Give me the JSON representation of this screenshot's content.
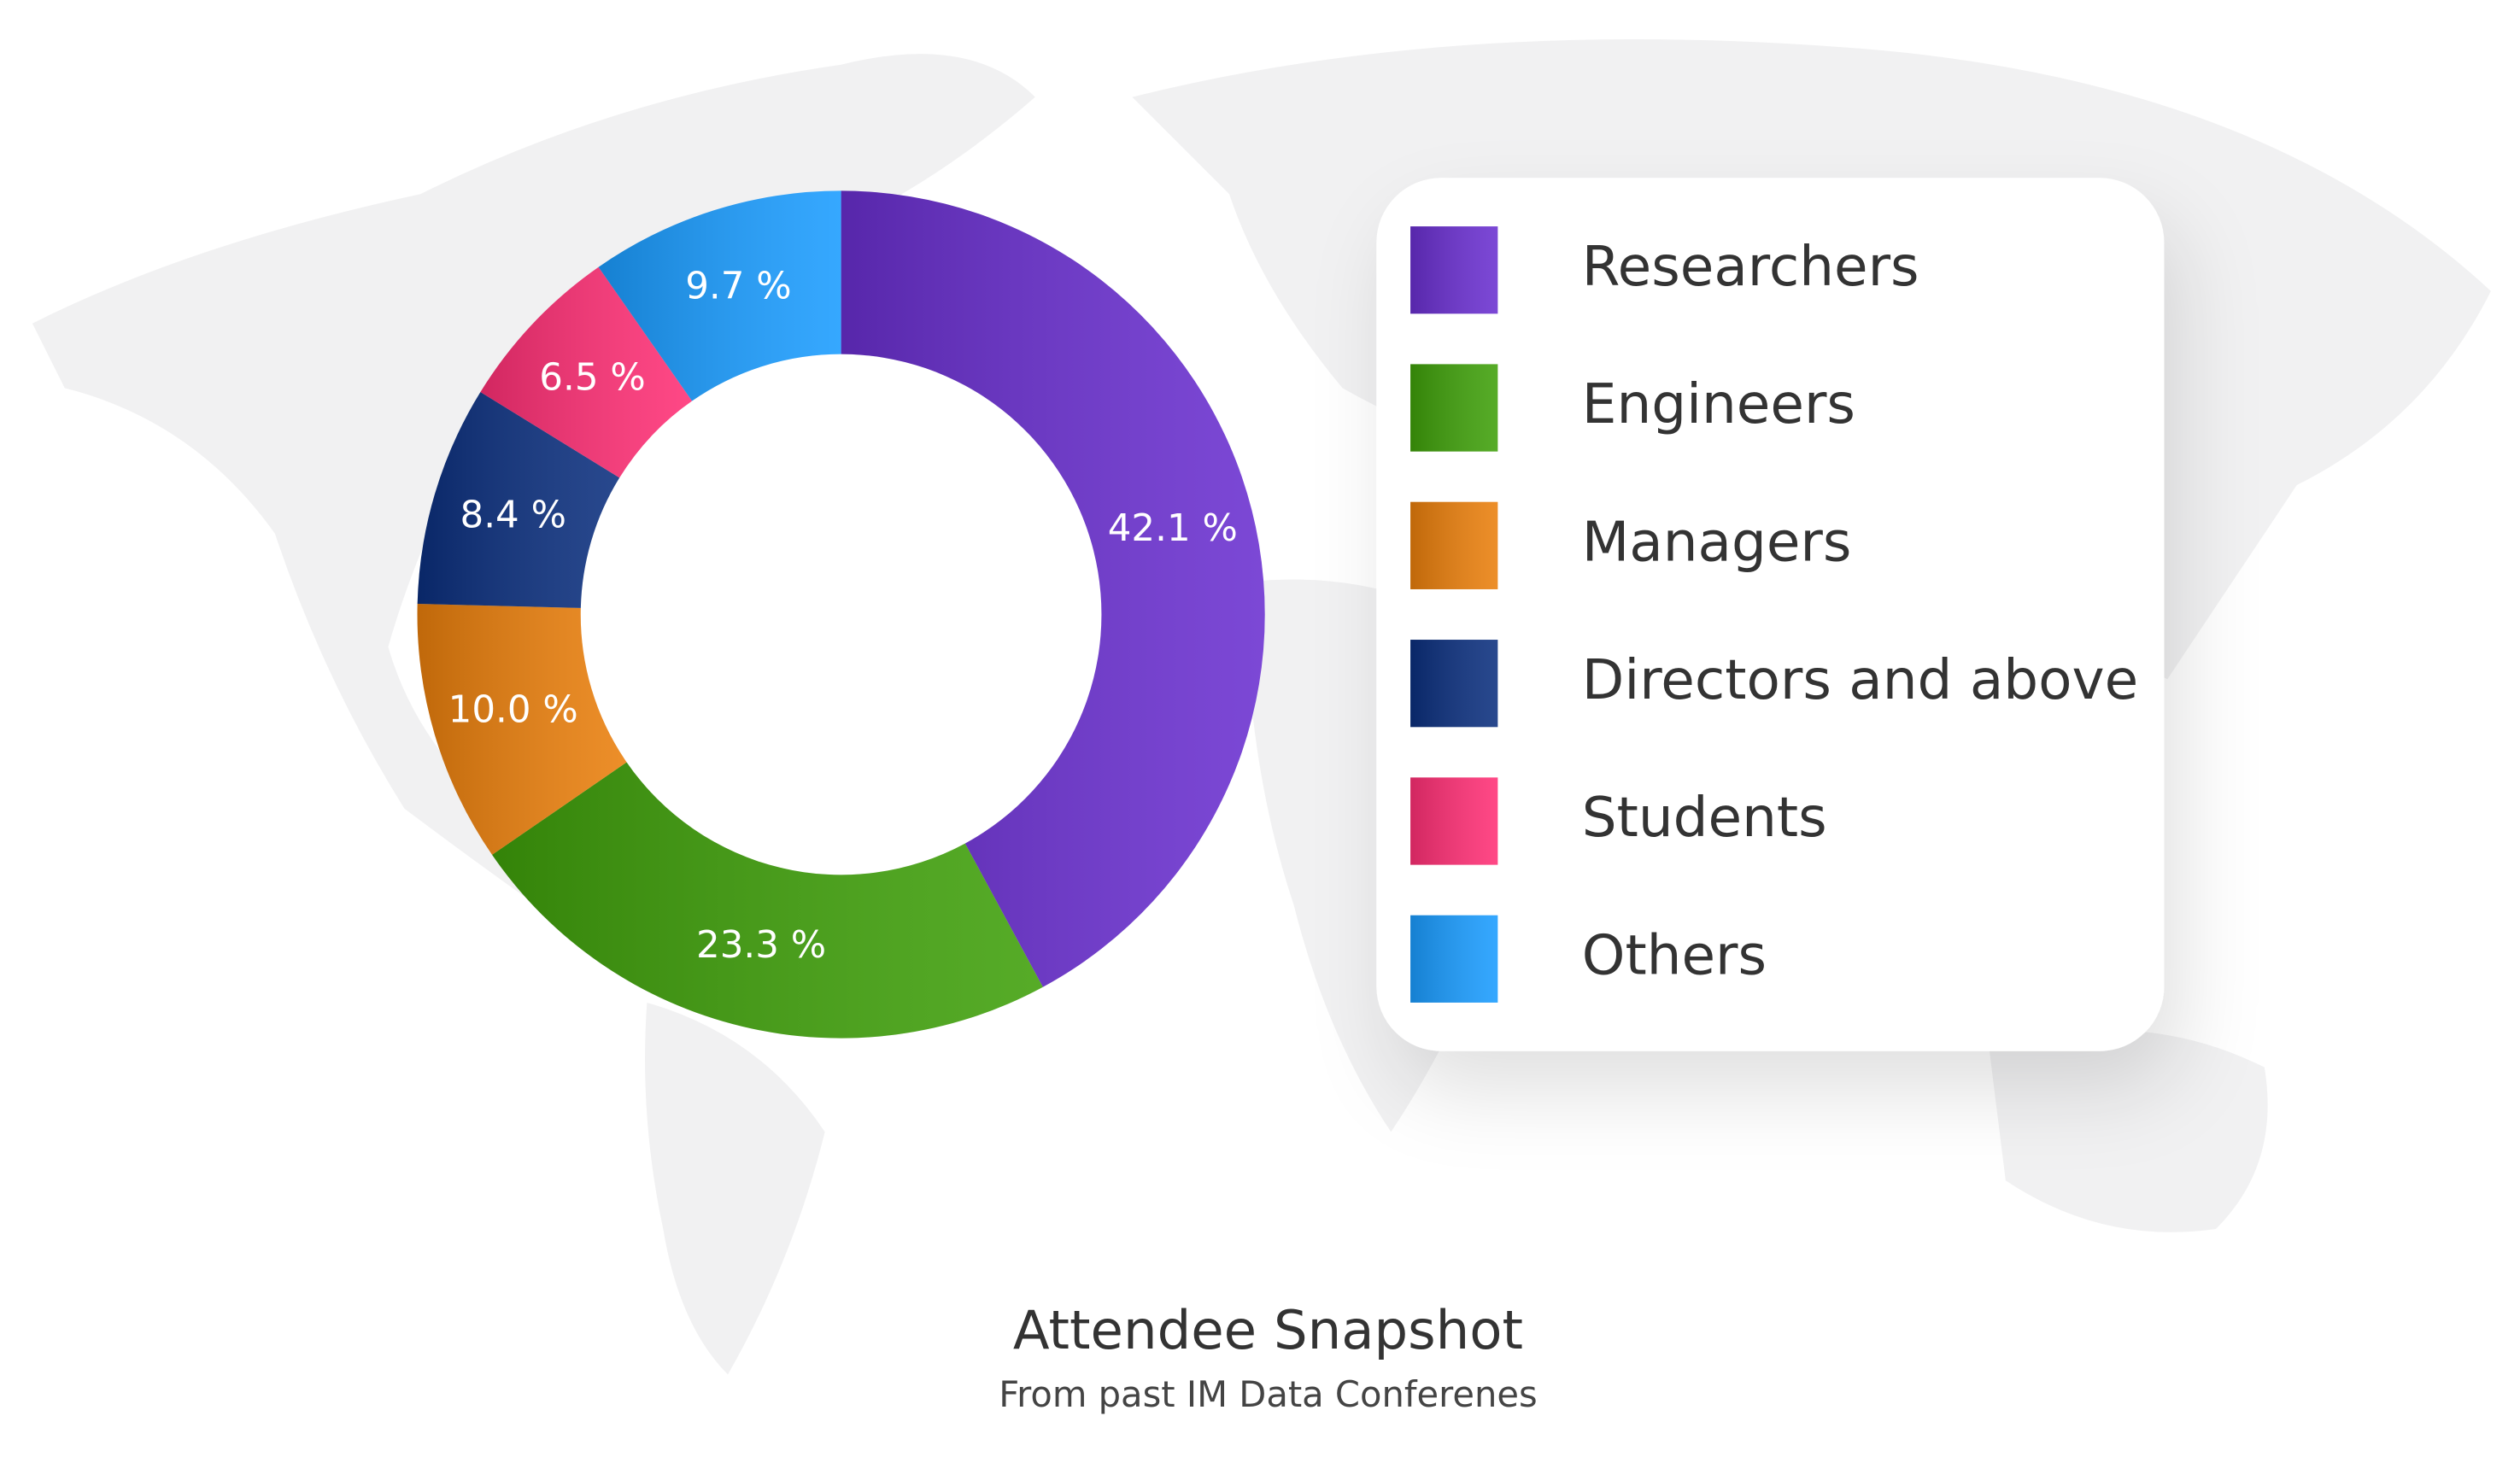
{
  "chart_data": {
    "type": "donut",
    "title": "Attendee Snapshot",
    "subtitle": "From past IM Data Conferenes",
    "categories": [
      "Researchers",
      "Engineers",
      "Managers",
      "Directors and above",
      "Students",
      "Others"
    ],
    "values": [
      42.1,
      23.3,
      10.0,
      8.4,
      6.5,
      9.7
    ],
    "value_labels": [
      "42.1 %",
      "23.3 %",
      "10.0 %",
      "8.4 %",
      "6.5 %",
      "9.7 %"
    ],
    "colors": [
      "#6a2fd0",
      "#3fa00a",
      "#ea7f0c",
      "#0b2f7e",
      "#ff2f75",
      "#1a9cff"
    ],
    "legend": "right"
  }
}
